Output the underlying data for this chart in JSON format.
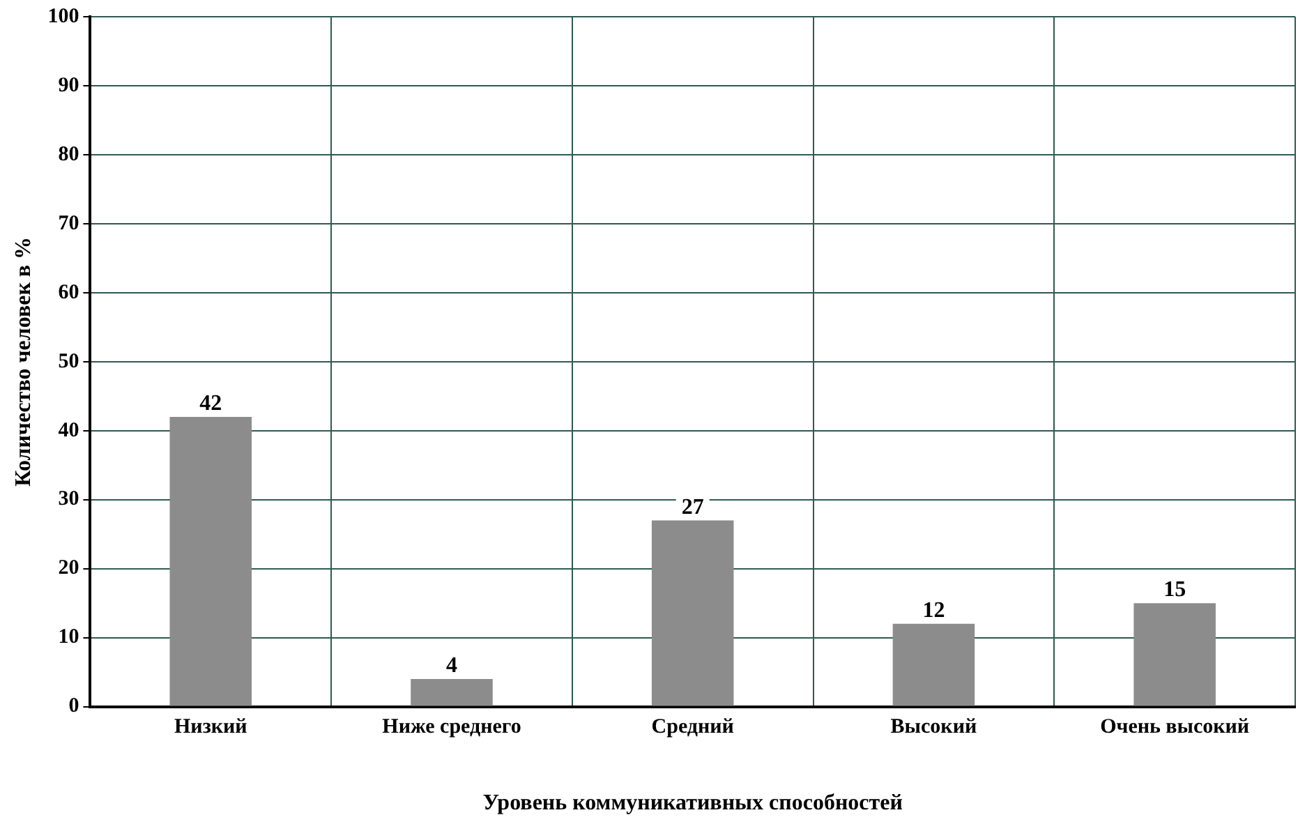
{
  "chart_data": {
    "type": "bar",
    "xlabel": "Уровень коммуникативных способностей",
    "ylabel": "Количество человек в %",
    "categories": [
      "Низкий",
      "Ниже среднего",
      "Средний",
      "Высокий",
      "Очень высокий"
    ],
    "values": [
      42,
      4,
      27,
      12,
      15
    ],
    "color": "#8c8c8c",
    "ylim": [
      0,
      100
    ],
    "yticks": [
      0,
      10,
      20,
      30,
      40,
      50,
      60,
      70,
      80,
      90,
      100
    ],
    "grid": true,
    "data_labels": true,
    "legend": false
  }
}
